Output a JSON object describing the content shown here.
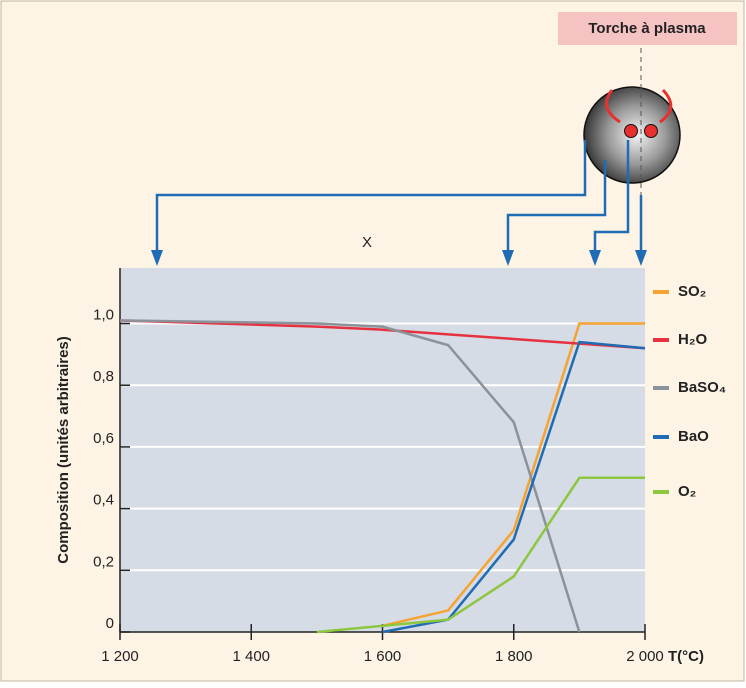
{
  "chart_data": {
    "type": "line",
    "y_label": "Composition (unités arbitraires)",
    "x_label": "T(°C)",
    "annotations": [
      "Torche à plasma",
      "X"
    ],
    "x": [
      1200,
      1500,
      1600,
      1700,
      1800,
      1900,
      2000
    ],
    "series": [
      {
        "name": "SO₂",
        "color": "#f5a331",
        "values": [
          null,
          null,
          0.02,
          0.07,
          0.33,
          1.0,
          1.0
        ]
      },
      {
        "name": "H₂O",
        "color": "#e63240",
        "values": [
          1.01,
          0.99,
          0.98,
          0.965,
          0.95,
          0.935,
          0.92
        ]
      },
      {
        "name": "BaSO₄",
        "color": "#8b9299",
        "values": [
          1.01,
          1.0,
          0.99,
          0.93,
          0.68,
          0.0,
          null
        ]
      },
      {
        "name": "BaO",
        "color": "#1f6cb5",
        "values": [
          null,
          null,
          0.0,
          0.04,
          0.3,
          0.94,
          0.92
        ]
      },
      {
        "name": "O₂",
        "color": "#8dc63f",
        "values": [
          null,
          0.0,
          0.02,
          0.04,
          0.18,
          0.5,
          0.5
        ]
      }
    ],
    "xlim": [
      1200,
      2000
    ],
    "xticks": [
      {
        "value": 1200,
        "label": "1 200"
      },
      {
        "value": 1400,
        "label": "1 400"
      },
      {
        "value": 1600,
        "label": "1 600"
      },
      {
        "value": 1800,
        "label": "1 800"
      },
      {
        "value": 2000,
        "label": "2 000"
      }
    ],
    "ylim": [
      0,
      1.18
    ],
    "yticks": [
      {
        "value": 0,
        "label": "0"
      },
      {
        "value": 0.2,
        "label": "0,2"
      },
      {
        "value": 0.4,
        "label": "0,4"
      },
      {
        "value": 0.6,
        "label": "0,6"
      },
      {
        "value": 0.8,
        "label": "0,8"
      },
      {
        "value": 1.0,
        "label": "1,0"
      }
    ],
    "grid": true
  }
}
